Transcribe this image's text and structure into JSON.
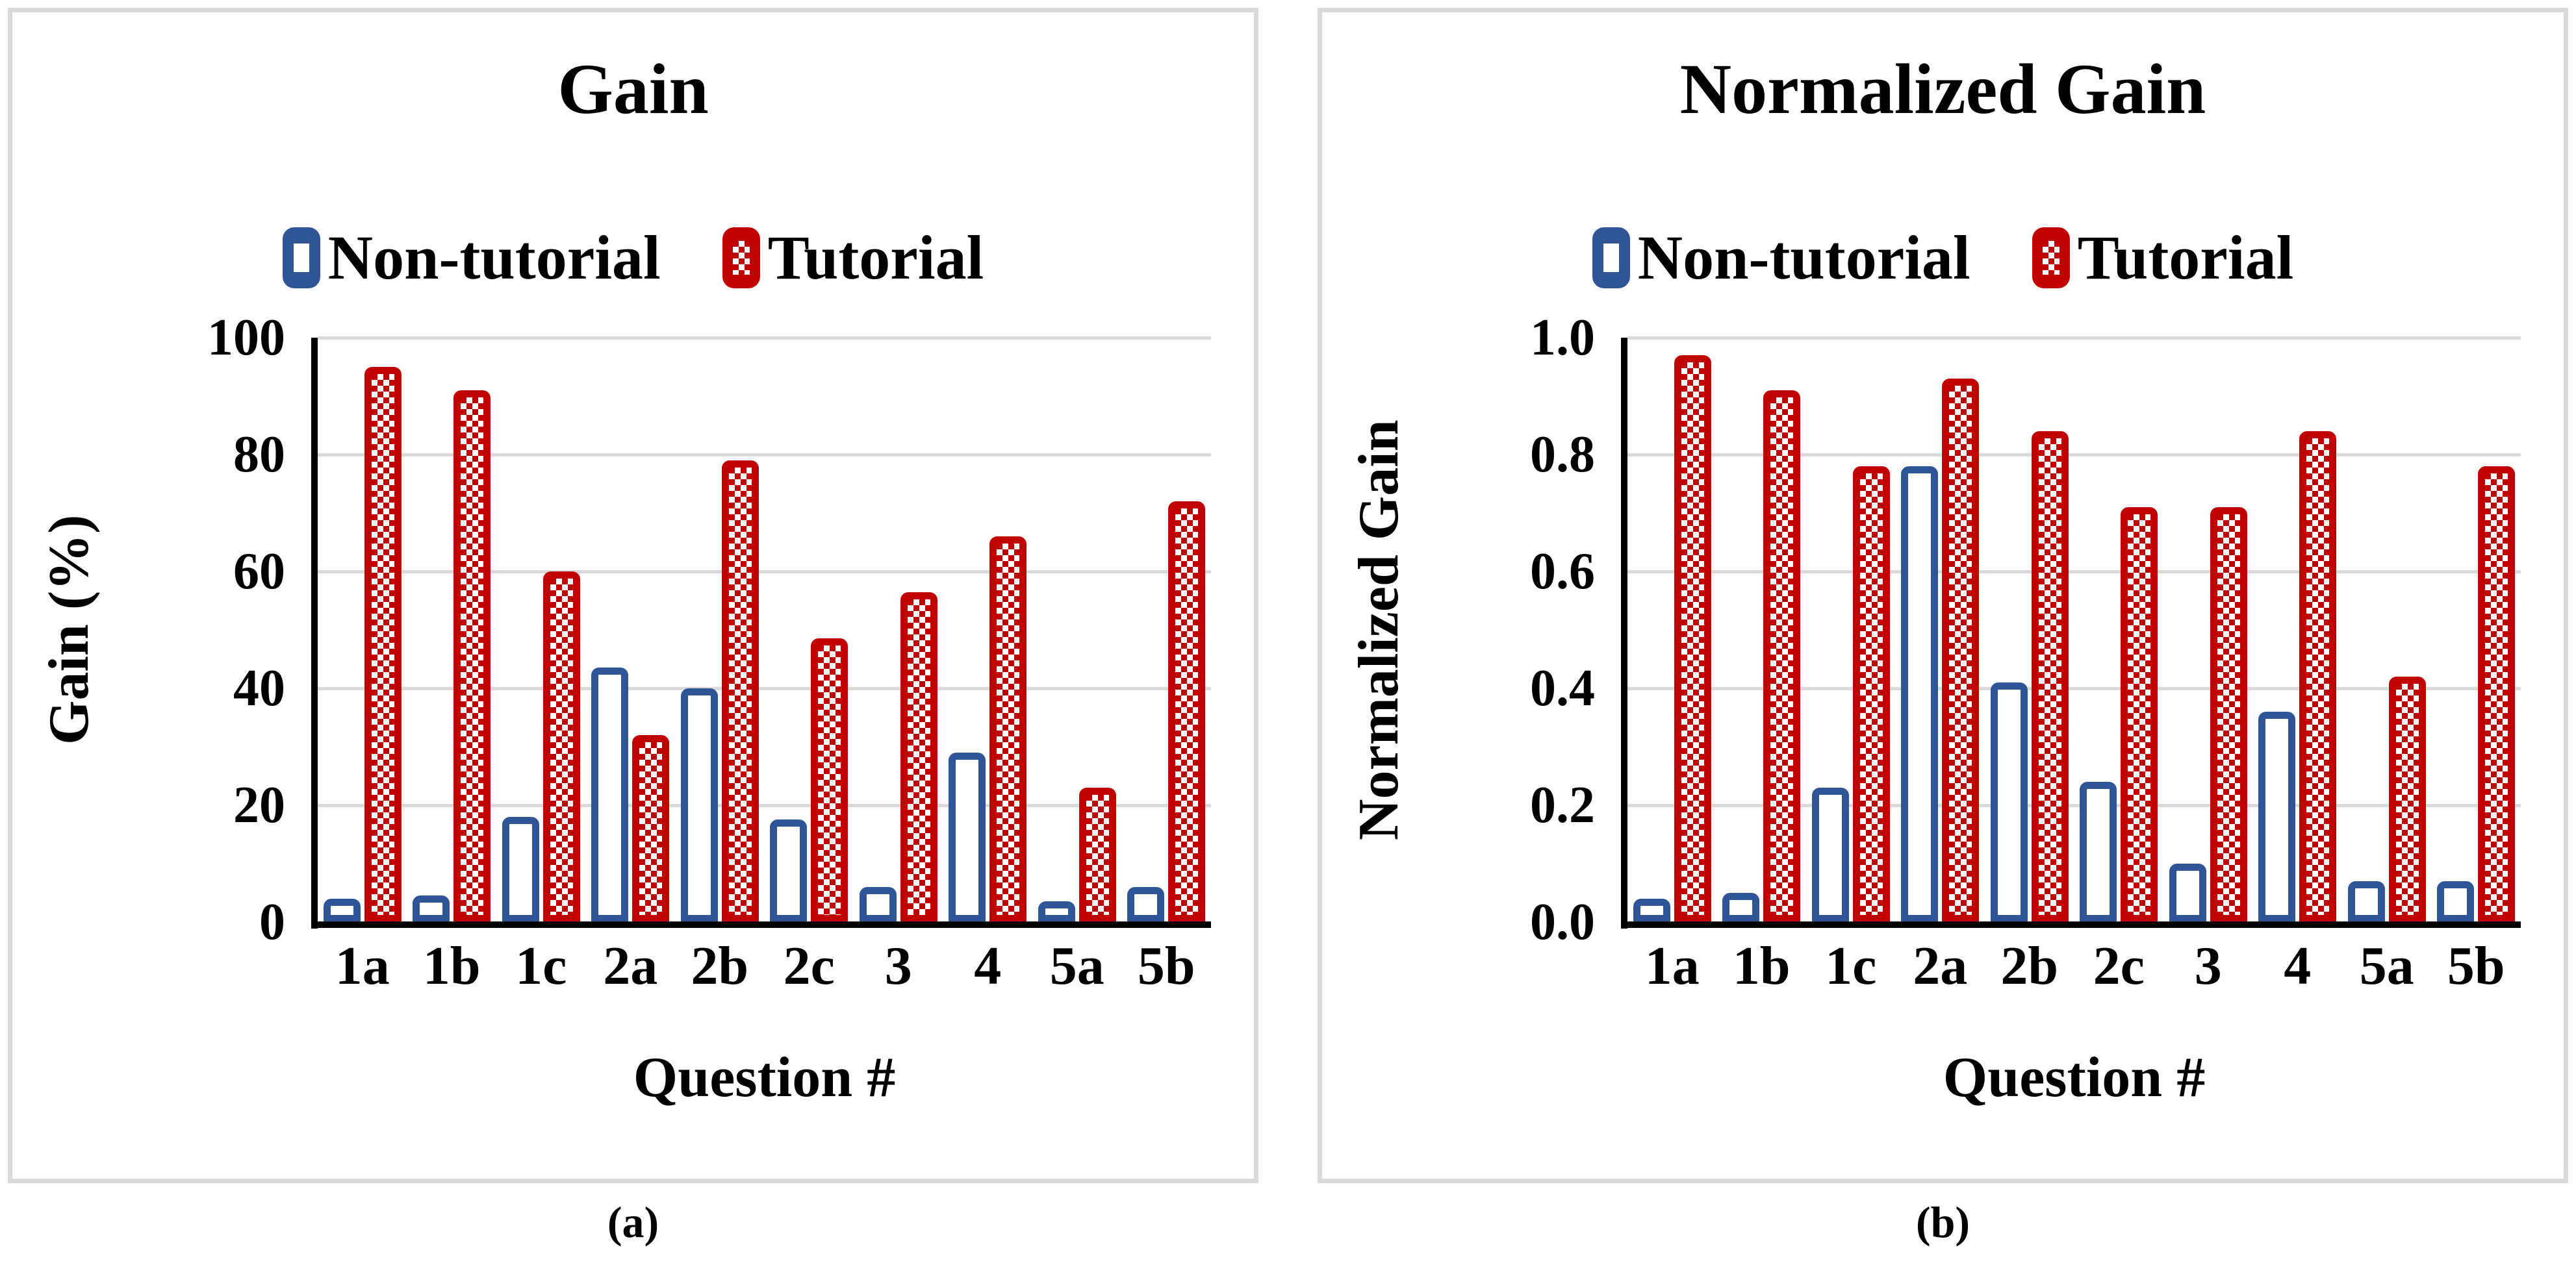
{
  "figure": {
    "captions": [
      "(a)",
      "(b)"
    ],
    "panels": [
      {
        "caption": "(a)"
      },
      {
        "caption": "(b)"
      }
    ]
  },
  "colors": {
    "non_tutorial_blue": "#2F5597",
    "tutorial_red": "#C00000",
    "gridline_gray": "#D9D9D9",
    "panel_border_gray": "#D9D9D9",
    "axis_black": "#000000",
    "background": "#FFFFFF"
  },
  "chart_data": [
    {
      "type": "bar",
      "title": "Gain",
      "categories": [
        "1a",
        "1b",
        "1c",
        "2a",
        "2b",
        "2c",
        "3",
        "4",
        "5a",
        "5b"
      ],
      "series": [
        {
          "name": "Non-tutorial",
          "values": [
            4,
            4.5,
            18,
            43.5,
            40,
            17.5,
            6,
            29,
            3.5,
            6
          ]
        },
        {
          "name": "Tutorial",
          "values": [
            95,
            91,
            60,
            32,
            79,
            48.5,
            56.5,
            66,
            23,
            72
          ]
        }
      ],
      "xlabel": "Question #",
      "ylabel": "Gain (%)",
      "ylim": [
        0,
        100
      ],
      "y_ticks": [
        0,
        20,
        40,
        60,
        80,
        100
      ],
      "y_tick_labels": [
        "0",
        "20",
        "40",
        "60",
        "80",
        "100"
      ],
      "grid": true,
      "legend_position": "top"
    },
    {
      "type": "bar",
      "title": "Normalized Gain",
      "categories": [
        "1a",
        "1b",
        "1c",
        "2a",
        "2b",
        "2c",
        "3",
        "4",
        "5a",
        "5b"
      ],
      "series": [
        {
          "name": "Non-tutorial",
          "values": [
            0.04,
            0.05,
            0.23,
            0.78,
            0.41,
            0.24,
            0.1,
            0.36,
            0.07,
            0.07
          ]
        },
        {
          "name": "Tutorial",
          "values": [
            0.97,
            0.91,
            0.78,
            0.93,
            0.84,
            0.71,
            0.71,
            0.84,
            0.42,
            0.78
          ]
        }
      ],
      "xlabel": "Question #",
      "ylabel": "Normalized Gain",
      "ylim": [
        0,
        1.0
      ],
      "y_ticks": [
        0,
        0.2,
        0.4,
        0.6,
        0.8,
        1.0
      ],
      "y_tick_labels": [
        "0.0",
        "0.2",
        "0.4",
        "0.6",
        "0.8",
        "1.0"
      ],
      "grid": true,
      "legend_position": "top"
    }
  ]
}
